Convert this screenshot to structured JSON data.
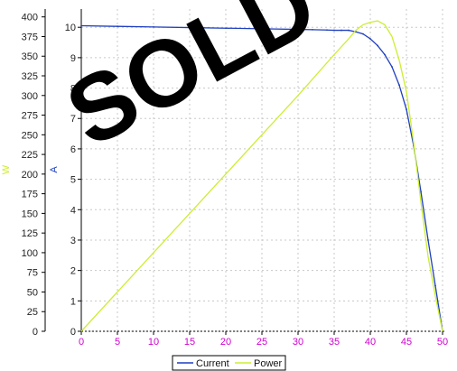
{
  "watermark": "SOLD",
  "chart_data": {
    "type": "line",
    "x_ticks": [
      "0",
      "5",
      "10",
      "15",
      "20",
      "25",
      "30",
      "35",
      "40",
      "45",
      "50"
    ],
    "y_left_ticks": [
      "0",
      "25",
      "50",
      "75",
      "100",
      "125",
      "150",
      "175",
      "200",
      "225",
      "250",
      "275",
      "300",
      "325",
      "350",
      "375",
      "400"
    ],
    "y_right_ticks": [
      "0",
      "1",
      "2",
      "3",
      "4",
      "5",
      "6",
      "7",
      "8",
      "9",
      "10"
    ],
    "y_left_label": "W",
    "y_right_label": "A",
    "xlim": [
      0,
      50
    ],
    "y_left_lim": [
      0,
      410
    ],
    "y_right_lim": [
      0,
      10.6
    ],
    "grid": true,
    "legend_position": "bottom-center",
    "colors": {
      "current": "#1f3fbf",
      "power": "#ccee33",
      "x_ticks": "#d000d0",
      "axis": "#000000",
      "grid": "#c8c8c8"
    },
    "series": [
      {
        "name": "Current",
        "axis": "right",
        "x": [
          0,
          5,
          10,
          15,
          20,
          25,
          30,
          32,
          34,
          35,
          36,
          37,
          38,
          39,
          40,
          41,
          42,
          43,
          44,
          45,
          46,
          47,
          48,
          49,
          50
        ],
        "y": [
          10.05,
          10.03,
          10.01,
          9.99,
          9.97,
          9.95,
          9.93,
          9.92,
          9.91,
          9.9,
          9.9,
          9.9,
          9.85,
          9.78,
          9.62,
          9.4,
          9.1,
          8.7,
          8.1,
          7.3,
          6.1,
          4.6,
          3.0,
          1.5,
          0.0
        ]
      },
      {
        "name": "Power",
        "axis": "left",
        "x": [
          0,
          5,
          10,
          15,
          20,
          25,
          30,
          35,
          37,
          38,
          39,
          40,
          41,
          42,
          43,
          44,
          45,
          46,
          47,
          48,
          49,
          50
        ],
        "y": [
          0,
          50,
          100,
          150,
          200,
          250,
          300,
          352,
          372,
          383,
          390,
          393,
          395,
          390,
          375,
          345,
          305,
          240,
          165,
          95,
          45,
          0
        ]
      }
    ]
  }
}
